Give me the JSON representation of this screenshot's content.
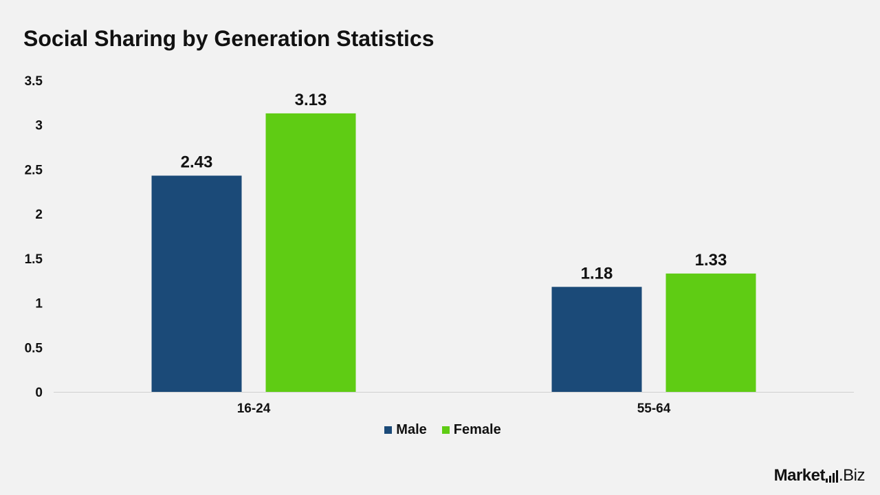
{
  "chart_data": {
    "type": "bar",
    "title": "Social Sharing by Generation Statistics",
    "categories": [
      "16-24",
      "55-64"
    ],
    "series": [
      {
        "name": "Male",
        "values": [
          2.43,
          1.18
        ],
        "color": "#1b4a78"
      },
      {
        "name": "Female",
        "values": [
          3.13,
          1.33
        ],
        "color": "#5fcc14"
      }
    ],
    "yticks": [
      "0",
      "0.5",
      "1",
      "1.5",
      "2",
      "2.5",
      "3",
      "3.5"
    ],
    "ylim": [
      0,
      3.5
    ],
    "xlabel": "",
    "ylabel": "",
    "grid": false,
    "legend": "bottom-center",
    "data_labels": true
  },
  "brand": {
    "name_bold": "Market",
    "name_light": ".Biz"
  }
}
